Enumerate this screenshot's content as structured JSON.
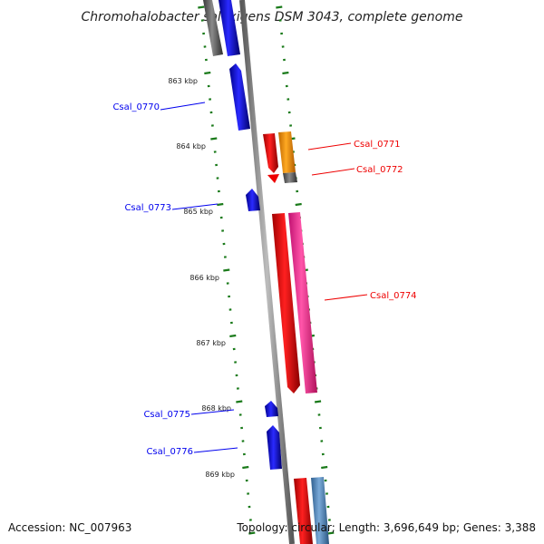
{
  "title": "Chromohalobacter salexigens DSM 3043, complete genome",
  "accession": "Accession: NC_007963",
  "topology": "Topology: circular; Length: 3,696,649 bp; Genes: 3,388",
  "colors": {
    "background": "#ffffff",
    "backbone": "#8a8a8a",
    "tick": "#1a7a1a",
    "forward_strand_gene": "#0000ee",
    "reverse_strand_gene": "#ee0000",
    "pink_gene": "#ff3399",
    "orange_gene": "#ff9900",
    "steelblue_gene": "#5588bb",
    "gray_gene": "#666666"
  },
  "ruler": {
    "unit": "kbp",
    "labels": [
      "863 kbp",
      "864 kbp",
      "865 kbp",
      "866 kbp",
      "867 kbp",
      "868 kbp",
      "869 kbp"
    ]
  },
  "genes": [
    {
      "id": "Csal_0770",
      "label": "Csal_0770",
      "color": "#0000ee"
    },
    {
      "id": "Csal_0771",
      "label": "Csal_0771",
      "color": "#ee0000"
    },
    {
      "id": "Csal_0772",
      "label": "Csal_0772",
      "color": "#ee0000"
    },
    {
      "id": "Csal_0773",
      "label": "Csal_0773",
      "color": "#0000ee"
    },
    {
      "id": "Csal_0774",
      "label": "Csal_0774",
      "color": "#ee0000"
    },
    {
      "id": "Csal_0775",
      "label": "Csal_0775",
      "color": "#0000ee"
    },
    {
      "id": "Csal_0776",
      "label": "Csal_0776",
      "color": "#0000ee"
    }
  ]
}
